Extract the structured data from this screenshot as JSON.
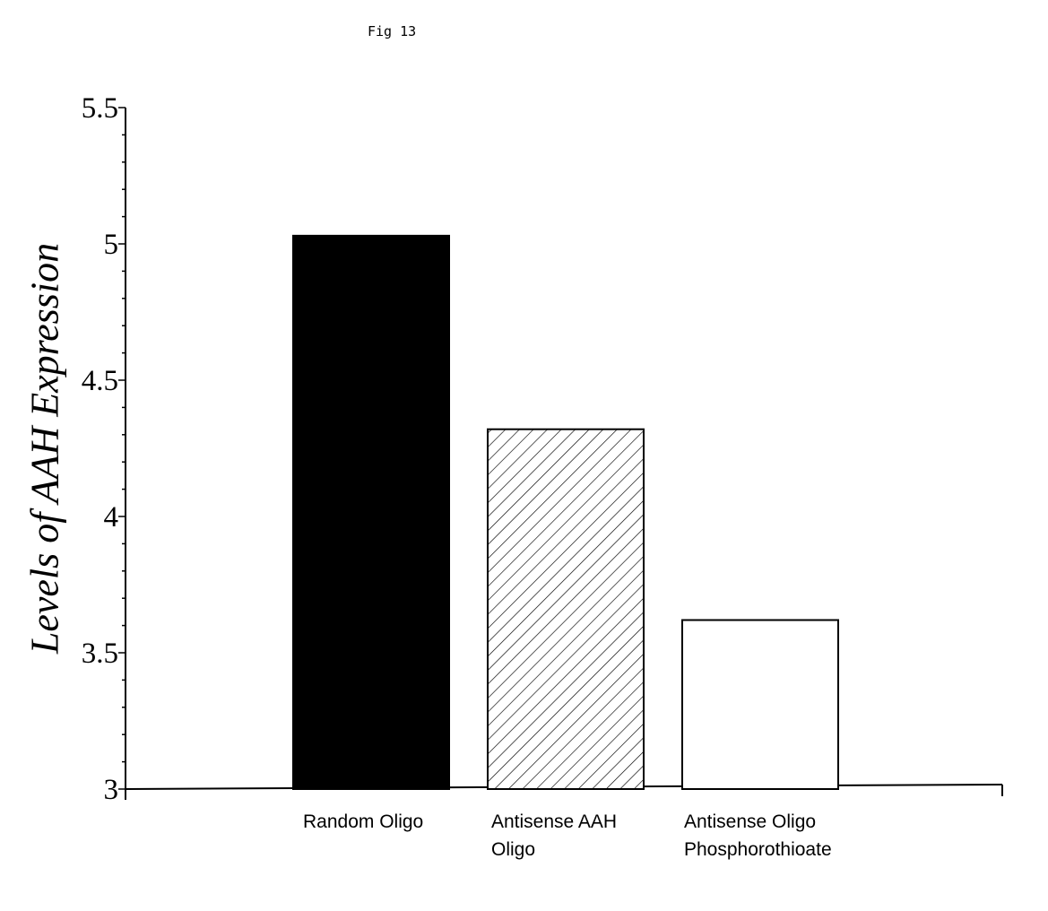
{
  "figure_label": "Fig 13",
  "chart_data": {
    "type": "bar",
    "title": "",
    "ylabel": "Levels of AAH Expression",
    "xlabel": "",
    "ylim": [
      3,
      5.5
    ],
    "yticks": [
      "3",
      "3.5",
      "4",
      "4.5",
      "5",
      "5.5"
    ],
    "categories": [
      "Random Oligo",
      "Antisense AAH\nOligo",
      "Antisense Oligo\nPhosphorothioate"
    ],
    "values": [
      5.03,
      4.32,
      3.62
    ],
    "bar_styles": [
      "solid-black",
      "diagonal-hatch",
      "white"
    ],
    "colors": {
      "fill": "#000000",
      "stroke": "#000000",
      "background": "#ffffff"
    },
    "grid": false,
    "legend": "none"
  }
}
